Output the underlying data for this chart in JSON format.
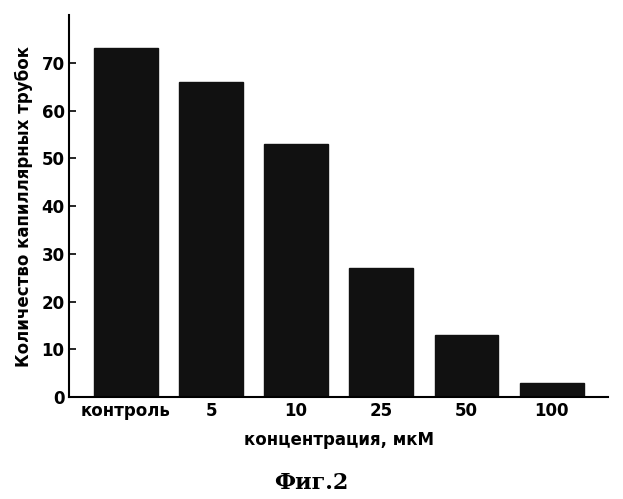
{
  "categories": [
    "контроль",
    "5",
    "10",
    "25",
    "50",
    "100"
  ],
  "values": [
    73,
    66,
    53,
    27,
    13,
    3
  ],
  "bar_color": "#111111",
  "xlabel": "концентрация, мкМ",
  "ylabel": "Количество капиллярных трубок",
  "caption": "Фиг.2",
  "ylim": [
    0,
    80
  ],
  "yticks": [
    0,
    10,
    20,
    30,
    40,
    50,
    60,
    70
  ],
  "background_color": "#ffffff",
  "bar_width": 0.75,
  "xlabel_fontsize": 12,
  "ylabel_fontsize": 12,
  "tick_fontsize": 12,
  "caption_fontsize": 16
}
